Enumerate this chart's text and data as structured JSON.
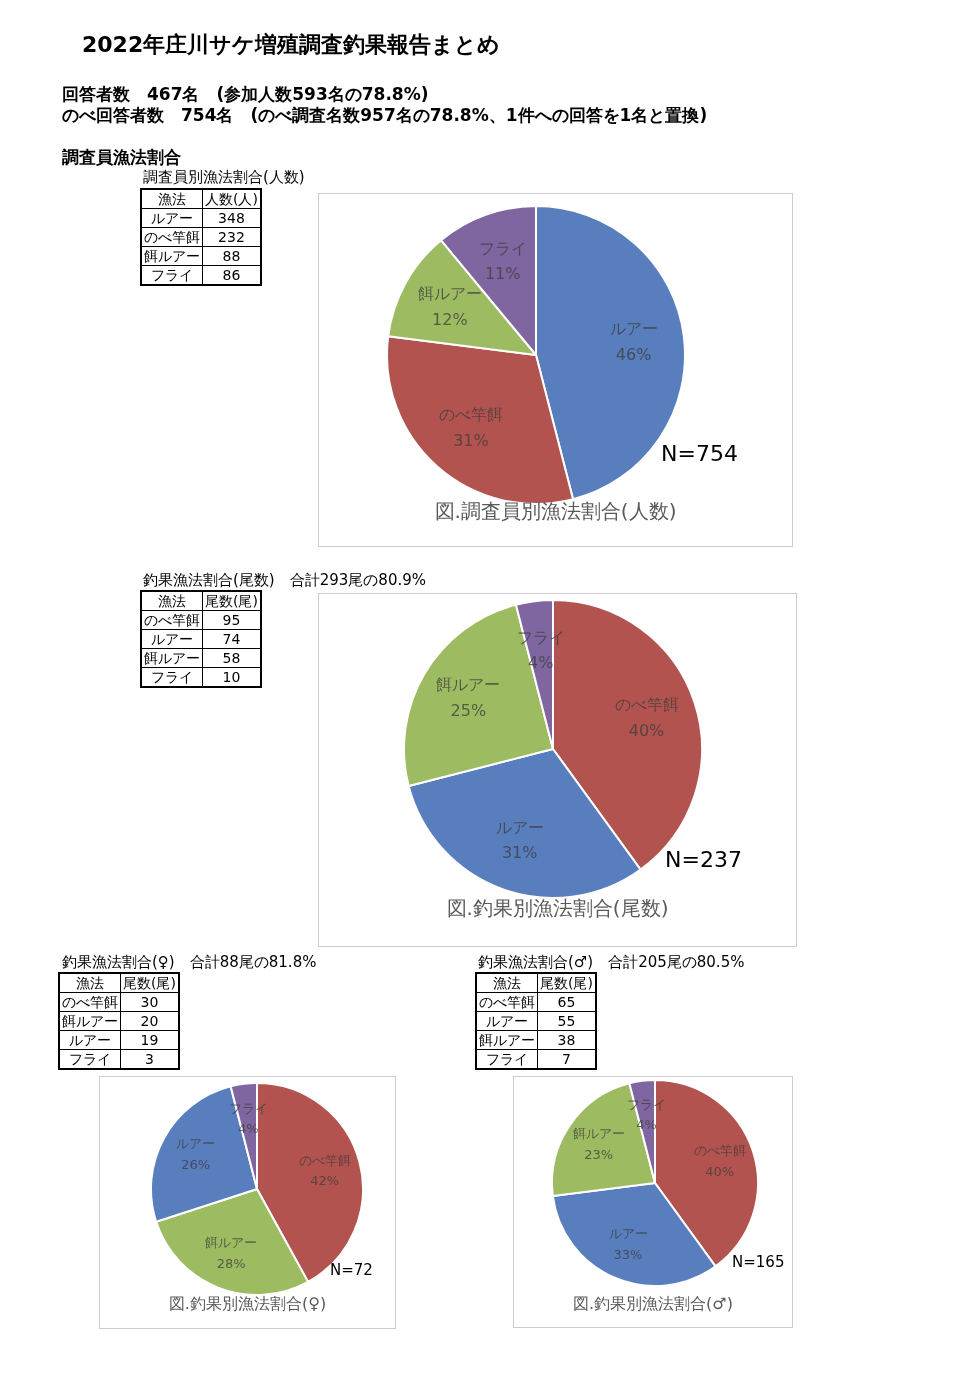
{
  "chart_data": [
    {
      "type": "other",
      "title": "調査員別漁法割合(人数)",
      "xlabel": "漁法",
      "ylabel": "人数(人)",
      "categories": [
        "ルアー",
        "のべ竿餌",
        "餌ルアー",
        "フライ"
      ],
      "values": [
        348,
        232,
        88,
        86
      ],
      "data_labels": true,
      "annotations": [
        "2022年庄川サケ増殖調査釣果報告まとめ",
        "回答者数　467名　(参加人数593名の78.8%)",
        "のべ回答者数　754名　(のべ調査名数957名の78.8%、1件への回答を1名と置換)",
        "調査員漁法割合"
      ]
    },
    {
      "type": "pie",
      "title": "図.調査員別漁法割合(人数)",
      "categories": [
        "ルアー",
        "のべ竿餌",
        "餌ルアー",
        "フライ"
      ],
      "values": [
        46,
        31,
        12,
        11
      ],
      "value_labels": [
        "46%",
        "31%",
        "12%",
        "11%"
      ],
      "colors": [
        "#587ebd",
        "#b3534f",
        "#9dbb61",
        "#7f66a0"
      ],
      "annotations": [
        "N=754"
      ]
    },
    {
      "type": "other",
      "title": "釣果漁法割合(尾数)　合計293尾の80.9%",
      "xlabel": "漁法",
      "ylabel": "尾数(尾)",
      "categories": [
        "のべ竿餌",
        "ルアー",
        "餌ルアー",
        "フライ"
      ],
      "values": [
        95,
        74,
        58,
        10
      ],
      "data_labels": true
    },
    {
      "type": "pie",
      "title": "図.釣果別漁法割合(尾数)",
      "categories": [
        "のべ竿餌",
        "ルアー",
        "餌ルアー",
        "フライ"
      ],
      "values": [
        40,
        31,
        25,
        4
      ],
      "value_labels": [
        "40%",
        "31%",
        "25%",
        "4%"
      ],
      "colors": [
        "#b3534f",
        "#587ebd",
        "#9dbb61",
        "#7f66a0"
      ],
      "annotations": [
        "N=237"
      ]
    },
    {
      "type": "other",
      "title": "釣果漁法割合(♀)　合計88尾の81.8%",
      "xlabel": "漁法",
      "ylabel": "尾数(尾)",
      "categories": [
        "のべ竿餌",
        "餌ルアー",
        "ルアー",
        "フライ"
      ],
      "values": [
        30,
        20,
        19,
        3
      ],
      "data_labels": true
    },
    {
      "type": "pie",
      "title": "図.釣果別漁法割合(♀)",
      "categories": [
        "のべ竿餌",
        "餌ルアー",
        "ルアー",
        "フライ"
      ],
      "values": [
        42,
        28,
        26,
        4
      ],
      "value_labels": [
        "42%",
        "28%",
        "26%",
        "4%"
      ],
      "colors": [
        "#b3534f",
        "#9dbb61",
        "#587ebd",
        "#7f66a0"
      ],
      "annotations": [
        "N=72"
      ]
    },
    {
      "type": "other",
      "title": "釣果漁法割合(♂)　合計205尾の80.5%",
      "xlabel": "漁法",
      "ylabel": "尾数(尾)",
      "categories": [
        "のべ竿餌",
        "ルアー",
        "餌ルアー",
        "フライ"
      ],
      "values": [
        65,
        55,
        38,
        7
      ],
      "data_labels": true
    },
    {
      "type": "pie",
      "title": "図.釣果別漁法割合(♂)",
      "categories": [
        "のべ竿餌",
        "ルアー",
        "餌ルアー",
        "フライ"
      ],
      "values": [
        40,
        33,
        23,
        4
      ],
      "value_labels": [
        "40%",
        "33%",
        "23%",
        "4%"
      ],
      "colors": [
        "#b3534f",
        "#587ebd",
        "#9dbb61",
        "#7f66a0"
      ],
      "annotations": [
        "N=165"
      ]
    }
  ]
}
